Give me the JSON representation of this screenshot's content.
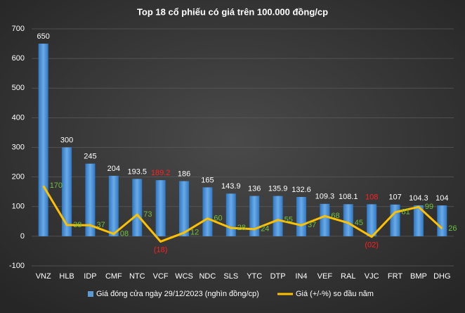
{
  "chart_data": {
    "type": "bar-line",
    "title": "Top 18 cổ phiếu có giá trên 100.000 đồng/cp",
    "categories": [
      "VNZ",
      "HLB",
      "IDP",
      "CMF",
      "NTC",
      "VCF",
      "WCS",
      "NDC",
      "SLS",
      "YTC",
      "DTP",
      "IN4",
      "VEF",
      "RAL",
      "VJC",
      "FRT",
      "BMP",
      "DHG"
    ],
    "series": [
      {
        "name": "Giá đóng cửa ngày 29/12/2023 (nghìn đồng/cp)",
        "type": "bar",
        "color": "#5b9bd5",
        "values": [
          650,
          300,
          245,
          204,
          193.5,
          189.2,
          186,
          165,
          143.9,
          136,
          135.9,
          132.6,
          109.3,
          108.1,
          108,
          107,
          104.3,
          104
        ],
        "value_label_colors": [
          "#ffffff",
          "#ffffff",
          "#ffffff",
          "#ffffff",
          "#ffffff",
          "#ff2020",
          "#ffffff",
          "#ffffff",
          "#ffffff",
          "#ffffff",
          "#ffffff",
          "#ffffff",
          "#ffffff",
          "#ffffff",
          "#ff2020",
          "#ffffff",
          "#ffffff",
          "#ffffff"
        ]
      },
      {
        "name": "Giá (+/-%) so đầu năm",
        "type": "line",
        "color": "#ffc000",
        "values": [
          170,
          38,
          37,
          8,
          73,
          -18,
          12,
          60,
          28,
          24,
          55,
          37,
          68,
          45,
          -2,
          81,
          99,
          26
        ],
        "value_labels": [
          "170",
          "38",
          "37",
          "08",
          "73",
          "(18)",
          "12",
          "60",
          "28",
          "24",
          "55",
          "37",
          "68",
          "45",
          "(02)",
          "81",
          "99",
          "26"
        ],
        "value_label_colors": [
          "#70c040",
          "#70c040",
          "#70c040",
          "#70c040",
          "#70c040",
          "#ff2020",
          "#70c040",
          "#70c040",
          "#70c040",
          "#70c040",
          "#70c040",
          "#70c040",
          "#70c040",
          "#70c040",
          "#ff2020",
          "#70c040",
          "#70c040",
          "#70c040"
        ]
      }
    ],
    "ylim": [
      -100,
      700
    ],
    "yticks": [
      -100,
      0,
      100,
      200,
      300,
      400,
      500,
      600,
      700
    ],
    "grid": true,
    "legend": "bottom"
  }
}
